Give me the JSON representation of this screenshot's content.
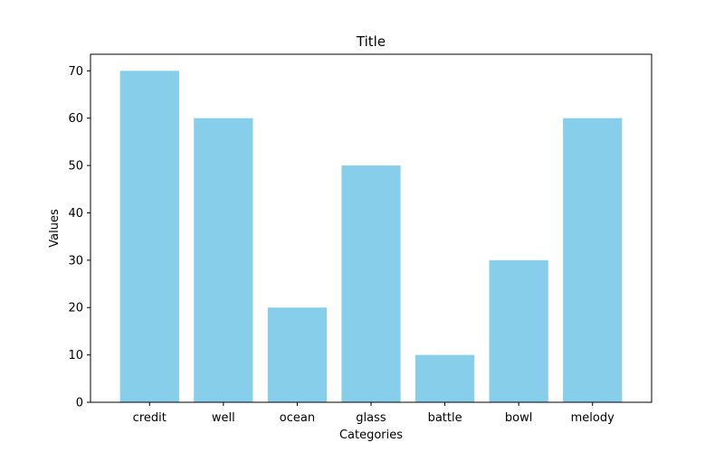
{
  "chart_data": {
    "type": "bar",
    "title": "Title",
    "xlabel": "Categories",
    "ylabel": "Values",
    "categories": [
      "credit",
      "well",
      "ocean",
      "glass",
      "battle",
      "bowl",
      "melody"
    ],
    "values": [
      70,
      60,
      20,
      50,
      10,
      30,
      60
    ],
    "ylim": [
      0,
      73.5
    ],
    "yticks": [
      0,
      10,
      20,
      30,
      40,
      50,
      60,
      70
    ],
    "bar_color": "#87ceeb",
    "grid": false,
    "legend": "none"
  }
}
